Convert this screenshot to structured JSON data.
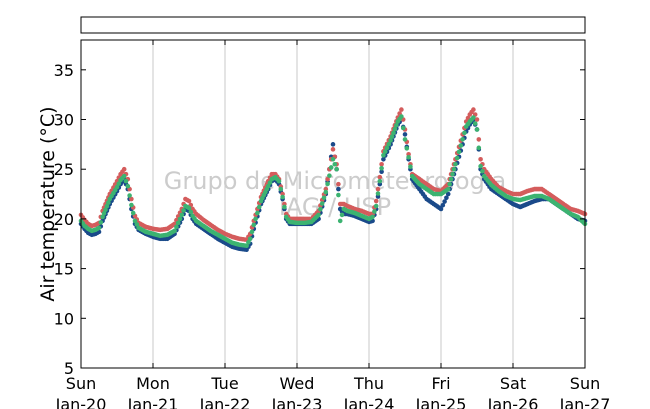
{
  "chart_data": {
    "type": "scatter",
    "title": "",
    "xlabel": "",
    "ylabel": "Air temperature (°C)",
    "ylim": [
      5,
      38
    ],
    "yticks": [
      5,
      10,
      15,
      20,
      25,
      30,
      35
    ],
    "xlim": [
      0,
      7
    ],
    "x_unit": "days since Sun Jan-20",
    "xticks": [
      {
        "day": "Sun",
        "date": "Jan-20"
      },
      {
        "day": "Mon",
        "date": "Jan-21"
      },
      {
        "day": "Tue",
        "date": "Jan-22"
      },
      {
        "day": "Wed",
        "date": "Jan-23"
      },
      {
        "day": "Thu",
        "date": "Jan-24"
      },
      {
        "day": "Fri",
        "date": "Jan-25"
      },
      {
        "day": "Sat",
        "date": "Jan-26"
      },
      {
        "day": "Sun",
        "date": "Jan-27"
      }
    ],
    "grid": "vertical",
    "watermark": [
      "Grupo de Micrometeorologia",
      "IAG / USP"
    ],
    "legend": "top (empty box)",
    "series": [
      {
        "color": "#1a4a8a",
        "x": [
          0.0,
          0.05,
          0.1,
          0.15,
          0.2,
          0.25,
          0.3,
          0.4,
          0.5,
          0.55,
          0.6,
          0.65,
          0.7,
          0.75,
          0.8,
          0.9,
          1.0,
          1.1,
          1.2,
          1.3,
          1.4,
          1.45,
          1.5,
          1.55,
          1.6,
          1.7,
          1.8,
          1.9,
          2.0,
          2.1,
          2.2,
          2.3,
          2.35,
          2.4,
          2.5,
          2.6,
          2.65,
          2.7,
          2.75,
          2.8,
          2.85,
          2.9,
          3.0,
          3.1,
          3.2,
          3.3,
          3.4,
          3.5,
          3.55,
          3.6,
          3.65,
          3.7,
          3.8,
          3.9,
          4.0,
          4.05,
          4.1,
          4.15,
          4.2,
          4.3,
          4.4,
          4.45,
          4.5,
          4.55,
          4.6,
          4.7,
          4.8,
          4.9,
          5.0,
          5.1,
          5.2,
          5.3,
          5.35,
          5.4,
          5.45,
          5.5,
          5.55,
          5.6,
          5.7,
          5.8,
          5.9,
          6.0,
          6.1,
          6.2,
          6.3,
          6.4,
          6.5,
          6.6,
          6.7,
          6.8,
          6.9,
          7.0
        ],
        "y": [
          19.5,
          19.0,
          18.6,
          18.4,
          18.5,
          18.7,
          19.8,
          21.5,
          22.8,
          23.5,
          24.0,
          23.0,
          21.0,
          19.5,
          18.9,
          18.5,
          18.2,
          18.0,
          18.0,
          18.5,
          20.0,
          21.0,
          20.8,
          20.0,
          19.5,
          19.0,
          18.5,
          18.0,
          17.6,
          17.2,
          17.0,
          16.9,
          17.5,
          19.0,
          21.5,
          23.0,
          23.8,
          24.0,
          23.5,
          22.0,
          20.0,
          19.5,
          19.5,
          19.5,
          19.5,
          20.0,
          22.5,
          27.5,
          25.0,
          21.0,
          20.5,
          20.5,
          20.3,
          20.0,
          19.7,
          19.8,
          21.0,
          23.5,
          26.0,
          27.5,
          29.5,
          30.0,
          28.5,
          26.0,
          24.0,
          23.0,
          22.0,
          21.5,
          21.0,
          22.5,
          25.0,
          27.5,
          28.8,
          29.5,
          30.0,
          29.0,
          25.0,
          24.0,
          23.0,
          22.5,
          22.0,
          21.5,
          21.2,
          21.5,
          21.8,
          22.0,
          22.0,
          21.5,
          21.0,
          20.5,
          20.0,
          19.8
        ]
      },
      {
        "color": "#d45c5c",
        "x": [
          0.0,
          0.05,
          0.1,
          0.15,
          0.2,
          0.25,
          0.3,
          0.4,
          0.5,
          0.55,
          0.6,
          0.65,
          0.7,
          0.75,
          0.8,
          0.9,
          1.0,
          1.1,
          1.2,
          1.3,
          1.4,
          1.45,
          1.5,
          1.55,
          1.6,
          1.7,
          1.8,
          1.9,
          2.0,
          2.1,
          2.2,
          2.3,
          2.35,
          2.4,
          2.5,
          2.6,
          2.65,
          2.7,
          2.75,
          2.8,
          2.85,
          2.9,
          3.0,
          3.1,
          3.2,
          3.3,
          3.4,
          3.5,
          3.55,
          3.6,
          3.65,
          3.7,
          3.8,
          3.9,
          4.0,
          4.05,
          4.1,
          4.15,
          4.2,
          4.3,
          4.4,
          4.45,
          4.5,
          4.55,
          4.6,
          4.7,
          4.8,
          4.9,
          5.0,
          5.1,
          5.2,
          5.3,
          5.35,
          5.4,
          5.45,
          5.5,
          5.55,
          5.6,
          5.7,
          5.8,
          5.9,
          6.0,
          6.1,
          6.2,
          6.3,
          6.4,
          6.5,
          6.6,
          6.7,
          6.8,
          6.9,
          7.0
        ],
        "y": [
          20.4,
          19.9,
          19.5,
          19.3,
          19.4,
          19.6,
          20.8,
          22.5,
          23.8,
          24.5,
          25.0,
          24.0,
          22.0,
          20.3,
          19.6,
          19.2,
          19.0,
          18.9,
          19.0,
          19.5,
          21.0,
          22.0,
          21.8,
          21.0,
          20.5,
          19.9,
          19.4,
          18.9,
          18.5,
          18.2,
          18.0,
          17.9,
          18.5,
          19.8,
          22.2,
          23.8,
          24.5,
          24.5,
          24.0,
          22.5,
          20.5,
          20.0,
          20.0,
          20.0,
          20.0,
          20.8,
          23.0,
          27.0,
          25.5,
          21.5,
          21.5,
          21.3,
          21.0,
          20.8,
          20.5,
          20.5,
          21.8,
          24.2,
          26.8,
          28.3,
          30.2,
          31.0,
          29.0,
          26.5,
          24.5,
          24.0,
          23.5,
          23.0,
          22.8,
          23.5,
          26.0,
          28.5,
          29.8,
          30.5,
          31.0,
          30.0,
          26.0,
          25.0,
          24.0,
          23.2,
          22.8,
          22.5,
          22.5,
          22.8,
          23.0,
          23.0,
          22.5,
          22.0,
          21.5,
          21.0,
          20.8,
          20.5
        ]
      },
      {
        "color": "#3cb371",
        "x": [
          0.0,
          0.05,
          0.1,
          0.15,
          0.2,
          0.25,
          0.3,
          0.4,
          0.5,
          0.55,
          0.6,
          0.65,
          0.7,
          0.75,
          0.8,
          0.9,
          1.0,
          1.1,
          1.2,
          1.3,
          1.4,
          1.45,
          1.5,
          1.55,
          1.6,
          1.7,
          1.8,
          1.9,
          2.0,
          2.1,
          2.2,
          2.3,
          2.35,
          2.4,
          2.5,
          2.6,
          2.65,
          2.7,
          2.75,
          2.8,
          2.85,
          2.9,
          3.0,
          3.1,
          3.2,
          3.3,
          3.4,
          3.5,
          3.55,
          3.6,
          3.65,
          3.7,
          3.8,
          3.9,
          4.0,
          4.05,
          4.1,
          4.15,
          4.2,
          4.3,
          4.4,
          4.45,
          4.5,
          4.55,
          4.6,
          4.7,
          4.8,
          4.9,
          5.0,
          5.1,
          5.2,
          5.3,
          5.35,
          5.4,
          5.45,
          5.5,
          5.55,
          5.6,
          5.7,
          5.8,
          5.9,
          6.0,
          6.1,
          6.2,
          6.3,
          6.4,
          6.5,
          6.6,
          6.7,
          6.8,
          6.9,
          7.0
        ],
        "y": [
          19.8,
          19.3,
          19.0,
          18.8,
          18.9,
          19.1,
          20.2,
          22.0,
          23.2,
          23.9,
          24.3,
          23.3,
          21.4,
          19.8,
          19.1,
          18.7,
          18.5,
          18.3,
          18.4,
          18.8,
          20.4,
          21.3,
          21.1,
          20.3,
          19.8,
          19.3,
          18.8,
          18.4,
          18.0,
          17.6,
          17.4,
          17.3,
          18.0,
          19.4,
          21.8,
          23.3,
          24.0,
          24.2,
          23.8,
          22.2,
          20.2,
          19.7,
          19.6,
          19.6,
          19.7,
          20.4,
          22.7,
          26.0,
          25.0,
          19.8,
          21.0,
          20.8,
          20.6,
          20.3,
          20.0,
          20.2,
          21.3,
          23.8,
          26.4,
          27.9,
          29.8,
          30.3,
          28.0,
          26.2,
          24.3,
          23.5,
          23.0,
          22.5,
          22.5,
          23.0,
          25.5,
          28.0,
          29.3,
          29.8,
          30.2,
          29.0,
          25.3,
          24.3,
          23.4,
          22.8,
          22.3,
          22.0,
          21.9,
          22.1,
          22.3,
          22.3,
          22.0,
          21.5,
          21.0,
          20.5,
          20.2,
          19.5
        ]
      }
    ]
  }
}
